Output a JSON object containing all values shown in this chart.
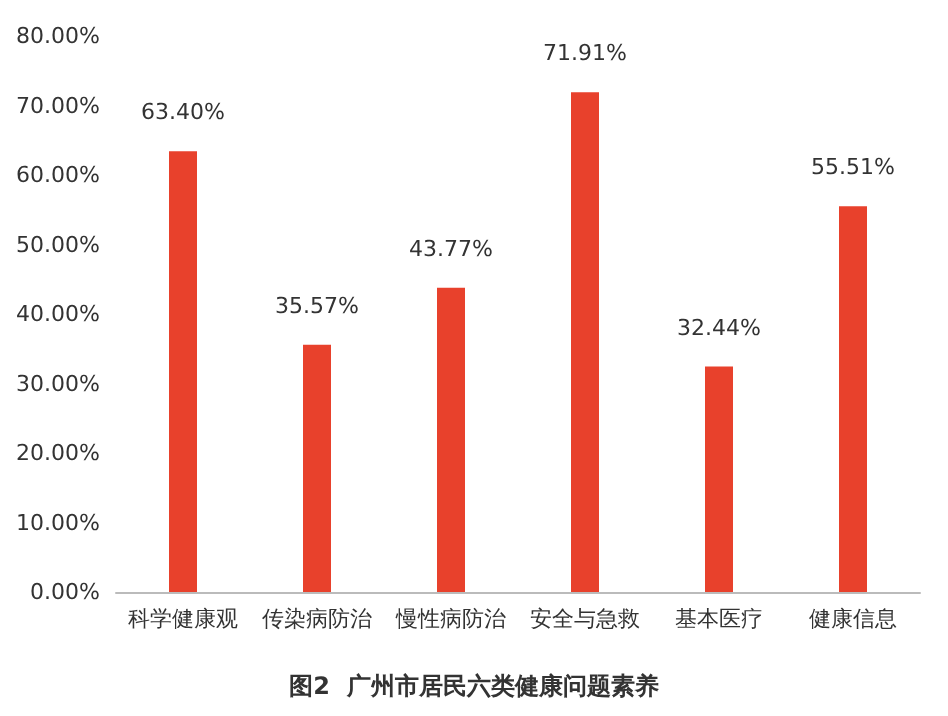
{
  "chart_data": {
    "type": "bar",
    "title": "图2  广州市居民六类健康问题素养",
    "categories": [
      "科学健康观",
      "传染病防治",
      "慢性病防治",
      "安全与急救",
      "基本医疗",
      "健康信息"
    ],
    "values": [
      63.4,
      35.57,
      43.77,
      71.91,
      32.44,
      55.51
    ],
    "value_labels": [
      "63.40%",
      "35.57%",
      "43.77%",
      "71.91%",
      "32.44%",
      "55.51%"
    ],
    "color": "#e8412c",
    "ylim": [
      0,
      80
    ],
    "yticks": [
      {
        "value": 0,
        "label": "0.00%"
      },
      {
        "value": 10,
        "label": "10.00%"
      },
      {
        "value": 20,
        "label": "20.00%"
      },
      {
        "value": 30,
        "label": "30.00%"
      },
      {
        "value": 40,
        "label": "40.00%"
      },
      {
        "value": 50,
        "label": "50.00%"
      },
      {
        "value": 60,
        "label": "60.00%"
      },
      {
        "value": 70,
        "label": "70.00%"
      },
      {
        "value": 80,
        "label": "80.00%"
      }
    ],
    "grid": false
  }
}
